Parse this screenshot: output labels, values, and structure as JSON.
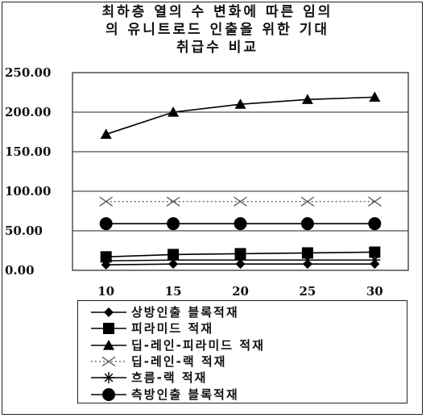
{
  "chart_data": {
    "type": "line",
    "title": "최하층 열의 수 변화에 따른 임의\n의 유니트로드 인출을 위한 기대\n취급수 비교",
    "categories": [
      "10",
      "15",
      "20",
      "25",
      "30"
    ],
    "ylim": [
      0,
      250
    ],
    "y_ticks": [
      "0.00",
      "50.00",
      "100.00",
      "150.00",
      "200.00",
      "250.00"
    ],
    "grid": "horizontal",
    "legend_position": "bottom",
    "series": [
      {
        "name": "상방인출 블록적재",
        "marker": "diamond",
        "line": "solid",
        "color": "#000000",
        "values": [
          7,
          8,
          8,
          8,
          8
        ]
      },
      {
        "name": "피라미드 적재",
        "marker": "square",
        "line": "solid",
        "color": "#000000",
        "values": [
          17,
          20,
          21,
          22,
          23
        ]
      },
      {
        "name": "딥-레인-피라미드 적재",
        "marker": "triangle",
        "line": "solid",
        "color": "#000000",
        "values": [
          172,
          200,
          210,
          216,
          219
        ]
      },
      {
        "name": "딥-레인-랙 적재",
        "marker": "x",
        "line": "dotted",
        "color": "#555555",
        "values": [
          87,
          87,
          87,
          87,
          87
        ]
      },
      {
        "name": "흐름-랙 적재",
        "marker": "star",
        "line": "solid",
        "color": "#000000",
        "values": [
          12,
          13,
          13,
          13,
          13
        ]
      },
      {
        "name": "측방인출 블록적재",
        "marker": "circle",
        "line": "solid",
        "color": "#000000",
        "values": [
          59,
          59,
          59,
          59,
          59
        ]
      }
    ]
  }
}
